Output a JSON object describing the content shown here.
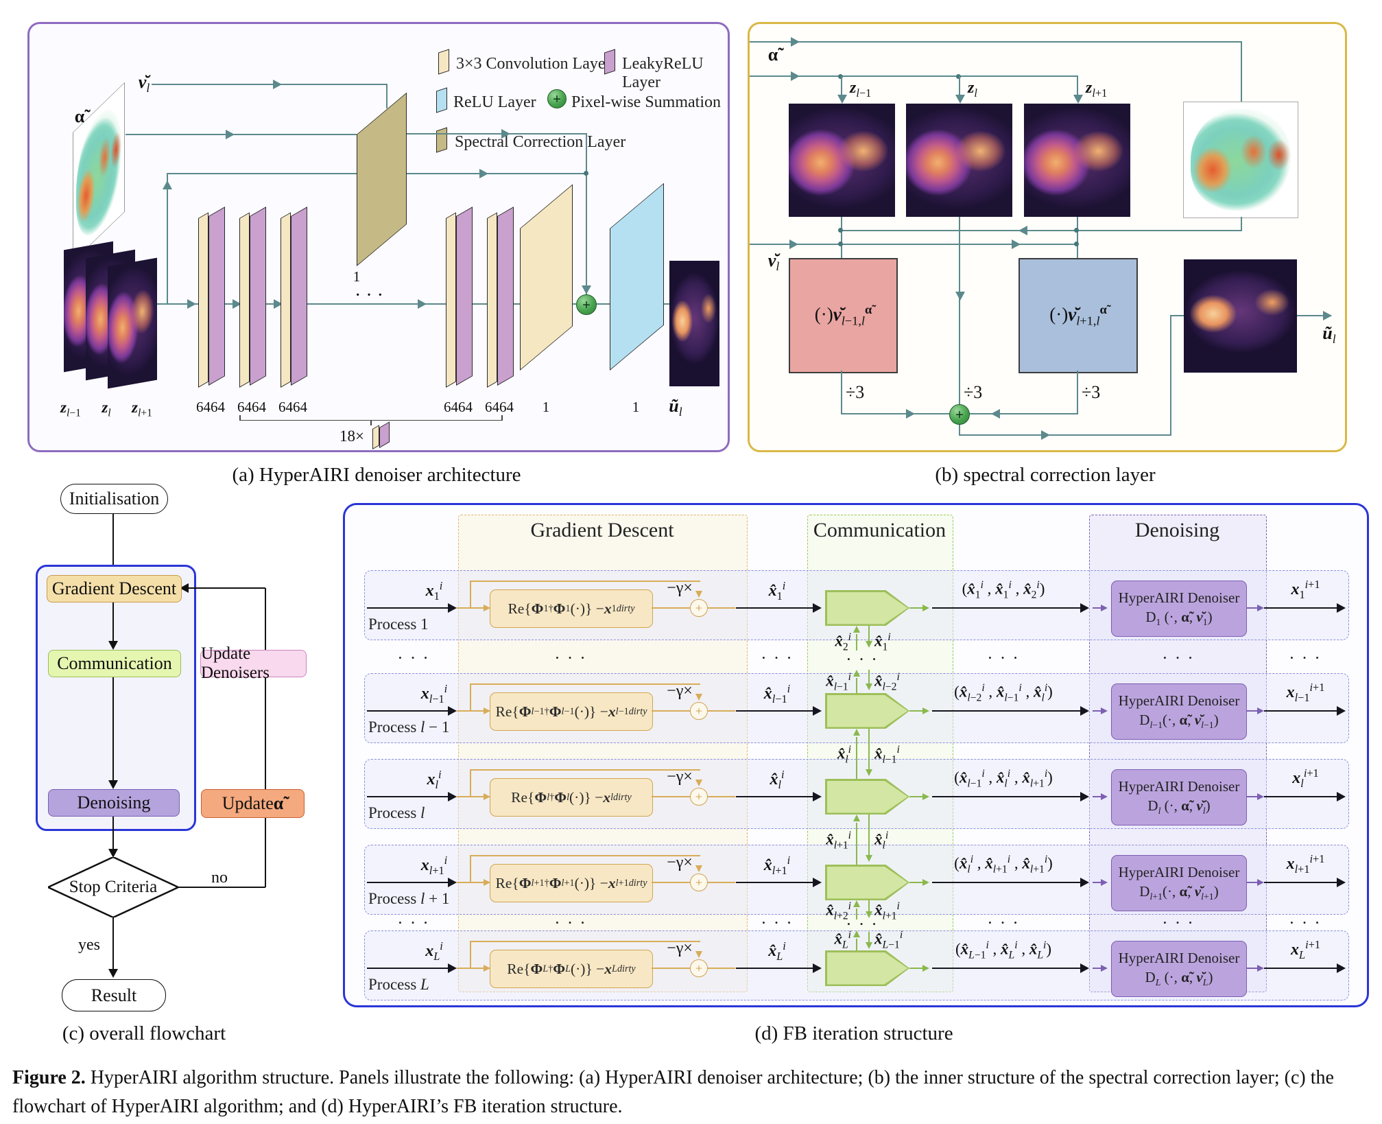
{
  "colors": {
    "panel_a_border": "#8e6bbf",
    "panel_b_border": "#d9b845",
    "panel_d_border": "#2a35d8",
    "conv_layer": "#f5e7c2",
    "leakyrelu_layer": "#c9a0ce",
    "relu_layer": "#b5e0f2",
    "spectral_layer": "#c5ba85",
    "sum_node_green": "#47a34f",
    "arrow_teal": "#5b898c",
    "gd_box": "#f7e7c4",
    "comm_block": "#d3e6a3",
    "denoiser_box": "#bba4de",
    "update_denoisers": "#f9d9ee",
    "update_alpha": "#f5a97e",
    "power_box_left": "#e9a5a2",
    "power_box_right": "#a9bfdb"
  },
  "figure_caption": {
    "tag": "Figure 2.",
    "text": " HyperAIRI algorithm structure. Panels illustrate the following: (a) HyperAIRI denoiser architecture; (b) the inner structure of the spectral correction layer; (c) the flowchart of HyperAIRI algorithm; and (d) HyperAIRI’s FB iteration structure."
  },
  "panel_a": {
    "caption": "(a) HyperAIRI denoiser architecture",
    "legend": {
      "conv": "3×3 Convolution Layer",
      "leakyrelu": "LeakyReLU Layer",
      "relu": "ReLU Layer",
      "sum": "Pixel-wise Summation",
      "spectral": "Spectral Correction Layer"
    },
    "labels": {
      "nu_input": "<b><i>ν̆</i></b><sub><i>l</i></sub>",
      "alpha_input": "<b>α̃</b>",
      "z_minus": "<b><i>z</i></b><sub><i>l</i>−1</sub>",
      "z_mid": "<b><i>z</i></b><sub><i>l</i></sub>",
      "z_plus": "<b><i>z</i></b><sub><i>l</i>+1</sub>",
      "ch1": "6464",
      "ch2": "6464",
      "ch3": "6464",
      "ch4": "6464",
      "ch5": "6464",
      "ch6": "1",
      "spec_ch": "1",
      "relu_ch": "1",
      "repeat": "18×",
      "dots": "· · ·",
      "output": "<b><i>ũ</i></b><sub><i>l</i></sub>"
    }
  },
  "panel_b": {
    "caption": "(b) spectral correction layer",
    "labels": {
      "alpha": "<b>α̃</b>",
      "z_minus": "<b><i>z</i></b><sub><i>l</i>−1</sub>",
      "z_mid": "<b><i>z</i></b><sub><i>l</i></sub>",
      "z_plus": "<b><i>z</i></b><sub><i>l</i>+1</sub>",
      "nu": "<b><i>ν̆</i></b><sub><i>l</i></sub>",
      "pow_left": "(·)<b><i>ν̆</i></b><sub><i>l</i>−1,<i>l</i></sub><sup><b>α̃</b></sup>",
      "pow_right": "(·)<b><i>ν̆</i></b><sub><i>l</i>+1,<i>l</i></sub><sup><b>α̃</b></sup>",
      "div1": "÷3",
      "div2": "÷3",
      "div3": "÷3",
      "output": "<b><i>ũ</i></b><sub><i>l</i></sub>"
    }
  },
  "panel_c": {
    "caption": "(c) overall flowchart",
    "nodes": {
      "init": "Initialisation",
      "gd": "Gradient Descent",
      "comm": "Communication",
      "den": "Denoising",
      "upd_den": "Update Denoisers",
      "upd_alpha": "Update <b>α̃</b>",
      "stop": "Stop Criteria",
      "no": "no",
      "yes": "yes",
      "result": "Result"
    }
  },
  "panel_d": {
    "caption": "(d) FB iteration structure",
    "headers": {
      "gd": "Gradient Descent",
      "comm": "Communication",
      "den": "Denoising"
    },
    "dots": "· · ·",
    "rows": [
      {
        "process": "Process 1",
        "input": "<b><i>x</i></b><sub>1</sub><sup><i>i</i></sup>",
        "gd": "Re{<b>Φ</b><sub>1</sub><sup>†</sup> <b>Φ</b><sub>1</sub> (·)} − <b><i>x</i></b><sub>1</sub><sup><i>dirty</i></sup>",
        "gamma": "−γ×",
        "xhat": "<b><i>x̂</i></b><sub>1</sub><sup><i>i</i></sup>",
        "tuple": "(<b><i>x̂</i></b><sub>1</sub><sup><i>i</i></sup> , <b><i>x̂</i></b><sub>1</sub><sup><i>i</i></sup> , <b><i>x̂</i></b><sub>2</sub><sup><i>i</i></sup>)",
        "den_name": "HyperAIRI Denoiser",
        "den_sig": "D<sub>1</sub> (·, <b>α̃</b>, <b><i>ν̆</i></b><sub>1</sub>)",
        "output": "<b><i>x</i></b><sub>1</sub><sup><i>i</i>+1</sup>"
      },
      {
        "process": "Process <i>l</i> − 1",
        "input": "<b><i>x</i></b><sub><i>l</i>−1</sub><sup><i>i</i></sup>",
        "gd": "Re{<b>Φ</b><sub><i>l</i>−1</sub><sup>†</sup><b>Φ</b><sub><i>l</i>−1</sub>(·)} − <b><i>x</i></b><sub><i>l</i>−1</sub><sup><i>dirty</i></sup>",
        "gamma": "−γ×",
        "xhat": "<b><i>x̂</i></b><sub><i>l</i>−1</sub><sup><i>i</i></sup>",
        "tuple": "(<b><i>x̂</i></b><sub><i>l</i>−2</sub><sup><i>i</i></sup> , <b><i>x̂</i></b><sub><i>l</i>−1</sub><sup><i>i</i></sup> , <b><i>x̂</i></b><sub><i>l</i></sub><sup><i>i</i></sup>)",
        "den_name": "HyperAIRI Denoiser",
        "den_sig": "D<sub><i>l</i>−1</sub>(·, <b>α̃</b>, <b><i>ν̆</i></b><sub><i>l</i>−1</sub>)",
        "output": "<b><i>x</i></b><sub><i>l</i>−1</sub><sup><i>i</i>+1</sup>"
      },
      {
        "process": "Process <i>l</i>",
        "input": "<b><i>x</i></b><sub><i>l</i></sub><sup><i>i</i></sup>",
        "gd": "Re{<b>Φ</b><sub><i>l</i></sub><sup>†</sup> <b>Φ</b><sub><i>l</i></sub> (·)} − <b><i>x</i></b><sub><i>l</i></sub><sup><i>dirty</i></sup>",
        "gamma": "−γ×",
        "xhat": "<b><i>x̂</i></b><sub><i>l</i></sub><sup><i>i</i></sup>",
        "tuple": "(<b><i>x̂</i></b><sub><i>l</i>−1</sub><sup><i>i</i></sup> , <b><i>x̂</i></b><sub><i>l</i></sub><sup><i>i</i></sup> , <b><i>x̂</i></b><sub><i>l</i>+1</sub><sup><i>i</i></sup>)",
        "den_name": "HyperAIRI Denoiser",
        "den_sig": "D<sub><i>l</i></sub> (·, <b>α̃</b>, <b><i>ν̆</i></b><sub><i>l</i></sub>)",
        "output": "<b><i>x</i></b><sub><i>l</i></sub><sup><i>i</i>+1</sup>"
      },
      {
        "process": "Process <i>l</i> + 1",
        "input": "<b><i>x</i></b><sub><i>l</i>+1</sub><sup><i>i</i></sup>",
        "gd": "Re{<b>Φ</b><sub><i>l</i>+1</sub><sup>†</sup><b>Φ</b><sub><i>l</i>+1</sub>(·)} − <b><i>x</i></b><sub><i>l</i>+1</sub><sup><i>dirty</i></sup>",
        "gamma": "−γ×",
        "xhat": "<b><i>x̂</i></b><sub><i>l</i>+1</sub><sup><i>i</i></sup>",
        "tuple": "(<b><i>x̂</i></b><sub><i>l</i></sub><sup><i>i</i></sup> , <b><i>x̂</i></b><sub><i>l</i>+1</sub><sup><i>i</i></sup> , <b><i>x̂</i></b><sub><i>l</i>+1</sub><sup><i>i</i></sup>)",
        "den_name": "HyperAIRI Denoiser",
        "den_sig": "D<sub><i>l</i>+1</sub>(·, <b>α̃</b>, <b><i>ν̆</i></b><sub><i>l</i>+1</sub>)",
        "output": "<b><i>x</i></b><sub><i>l</i>+1</sub><sup><i>i</i>+1</sup>"
      },
      {
        "process": "Process <i>L</i>",
        "input": "<b><i>x</i></b><sub><i>L</i></sub><sup><i>i</i></sup>",
        "gd": "Re{<b>Φ</b><sub><i>L</i></sub><sup>†</sup> <b>Φ</b><sub><i>L</i></sub> (·)} − <b><i>x</i></b><sub><i>L</i></sub><sup><i>dirty</i></sup>",
        "gamma": "−γ×",
        "xhat": "<b><i>x̂</i></b><sub><i>L</i></sub><sup><i>i</i></sup>",
        "tuple": "(<b><i>x̂</i></b><sub><i>L</i>−1</sub><sup><i>i</i></sup> , <b><i>x̂</i></b><sub><i>L</i></sub><sup><i>i</i></sup> , <b><i>x̂</i></b><sub><i>L</i></sub><sup><i>i</i></sup>)",
        "den_name": "HyperAIRI Denoiser",
        "den_sig": "D<sub><i>L</i></sub> (·, <b>α̃</b>, <b><i>ν̆</i></b><sub><i>L</i></sub>)",
        "output": "<b><i>x</i></b><sub><i>L</i></sub><sup><i>i</i>+1</sup>"
      }
    ],
    "exchanges": [
      {
        "up": "<b><i>x̂</i></b><sub>2</sub><sup><i>i</i></sup>",
        "down": "<b><i>x̂</i></b><sub>1</sub><sup><i>i</i></sup>"
      },
      {
        "up": "<b><i>x̂</i></b><sub><i>l</i>−1</sub><sup><i>i</i></sup>",
        "down": "<b><i>x̂</i></b><sub><i>l</i>−2</sub><sup><i>i</i></sup>"
      },
      {
        "up": "<b><i>x̂</i></b><sub><i>l</i></sub><sup><i>i</i></sup>",
        "down": "<b><i>x̂</i></b><sub><i>l</i>−1</sub><sup><i>i</i></sup>"
      },
      {
        "up": "<b><i>x̂</i></b><sub><i>l</i>+1</sub><sup><i>i</i></sup>",
        "down": "<b><i>x̂</i></b><sub><i>l</i></sub><sup><i>i</i></sup>"
      },
      {
        "up": "<b><i>x̂</i></b><sub><i>l</i>+2</sub><sup><i>i</i></sup>",
        "down": "<b><i>x̂</i></b><sub><i>l</i>+1</sub><sup><i>i</i></sup>"
      },
      {
        "up": "<b><i>x̂</i></b><sub><i>L</i></sub><sup><i>i</i></sup>",
        "down": "<b><i>x̂</i></b><sub><i>L</i>−1</sub><sup><i>i</i></sup>"
      }
    ]
  }
}
